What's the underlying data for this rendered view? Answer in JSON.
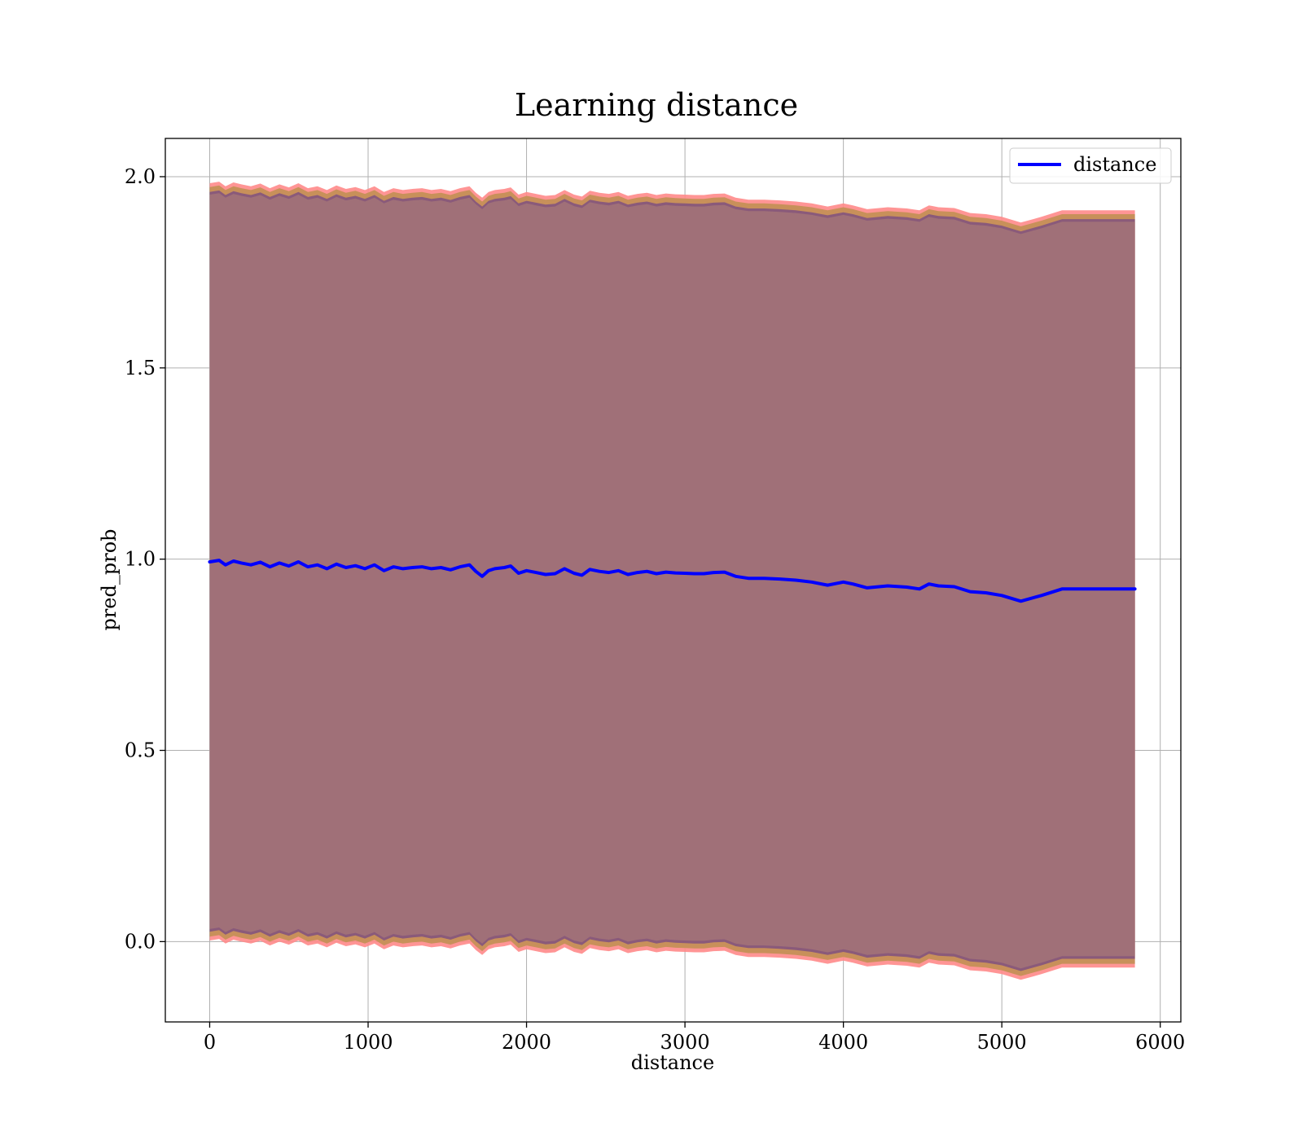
{
  "chart_data": {
    "type": "line",
    "title": "Learning distance",
    "xlabel": "distance",
    "ylabel": "pred_prob",
    "xlim": [
      -280,
      6130
    ],
    "ylim": [
      -0.21,
      2.1
    ],
    "xticks": [
      0,
      1000,
      2000,
      3000,
      4000,
      5000,
      6000
    ],
    "xtick_labels": [
      "0",
      "1000",
      "2000",
      "3000",
      "4000",
      "5000",
      "6000"
    ],
    "yticks": [
      0.0,
      0.5,
      1.0,
      1.5,
      2.0
    ],
    "ytick_labels": [
      "0.0",
      "0.5",
      "1.0",
      "1.5",
      "2.0"
    ],
    "grid": true,
    "legend": {
      "position": "top-right",
      "entries": [
        "distance"
      ]
    },
    "series": [
      {
        "name": "distance",
        "color": "#0000ff",
        "x": [
          0,
          60,
          100,
          150,
          200,
          260,
          320,
          380,
          440,
          500,
          560,
          620,
          680,
          740,
          800,
          860,
          920,
          980,
          1040,
          1100,
          1160,
          1220,
          1280,
          1340,
          1400,
          1460,
          1520,
          1580,
          1640,
          1680,
          1720,
          1760,
          1800,
          1860,
          1900,
          1950,
          2000,
          2060,
          2120,
          2180,
          2240,
          2300,
          2350,
          2400,
          2460,
          2520,
          2580,
          2640,
          2700,
          2760,
          2820,
          2880,
          2940,
          3000,
          3060,
          3120,
          3180,
          3250,
          3320,
          3400,
          3500,
          3600,
          3700,
          3800,
          3900,
          4000,
          4060,
          4150,
          4280,
          4400,
          4480,
          4540,
          4600,
          4700,
          4800,
          4900,
          5000,
          5120,
          5250,
          5380,
          5500,
          5840
        ],
        "y": [
          0.993,
          0.997,
          0.985,
          0.995,
          0.99,
          0.985,
          0.992,
          0.98,
          0.99,
          0.982,
          0.993,
          0.98,
          0.985,
          0.975,
          0.987,
          0.978,
          0.983,
          0.975,
          0.985,
          0.97,
          0.98,
          0.975,
          0.978,
          0.98,
          0.975,
          0.978,
          0.972,
          0.98,
          0.985,
          0.968,
          0.955,
          0.97,
          0.975,
          0.978,
          0.982,
          0.963,
          0.97,
          0.965,
          0.96,
          0.962,
          0.975,
          0.963,
          0.958,
          0.973,
          0.968,
          0.965,
          0.97,
          0.96,
          0.965,
          0.968,
          0.962,
          0.966,
          0.964,
          0.963,
          0.962,
          0.962,
          0.965,
          0.966,
          0.955,
          0.95,
          0.95,
          0.948,
          0.945,
          0.94,
          0.932,
          0.94,
          0.935,
          0.925,
          0.93,
          0.927,
          0.922,
          0.935,
          0.93,
          0.928,
          0.915,
          0.912,
          0.905,
          0.89,
          0.905,
          0.922,
          0.922,
          0.922
        ]
      }
    ]
  },
  "style": {
    "band_fill": "#a07078",
    "band_edge_outer": "#ff8a8a",
    "band_edge_mid": "#c8905a",
    "band_edge_inner": "#8a5a7a",
    "grid_color": "#b0b0b0"
  }
}
